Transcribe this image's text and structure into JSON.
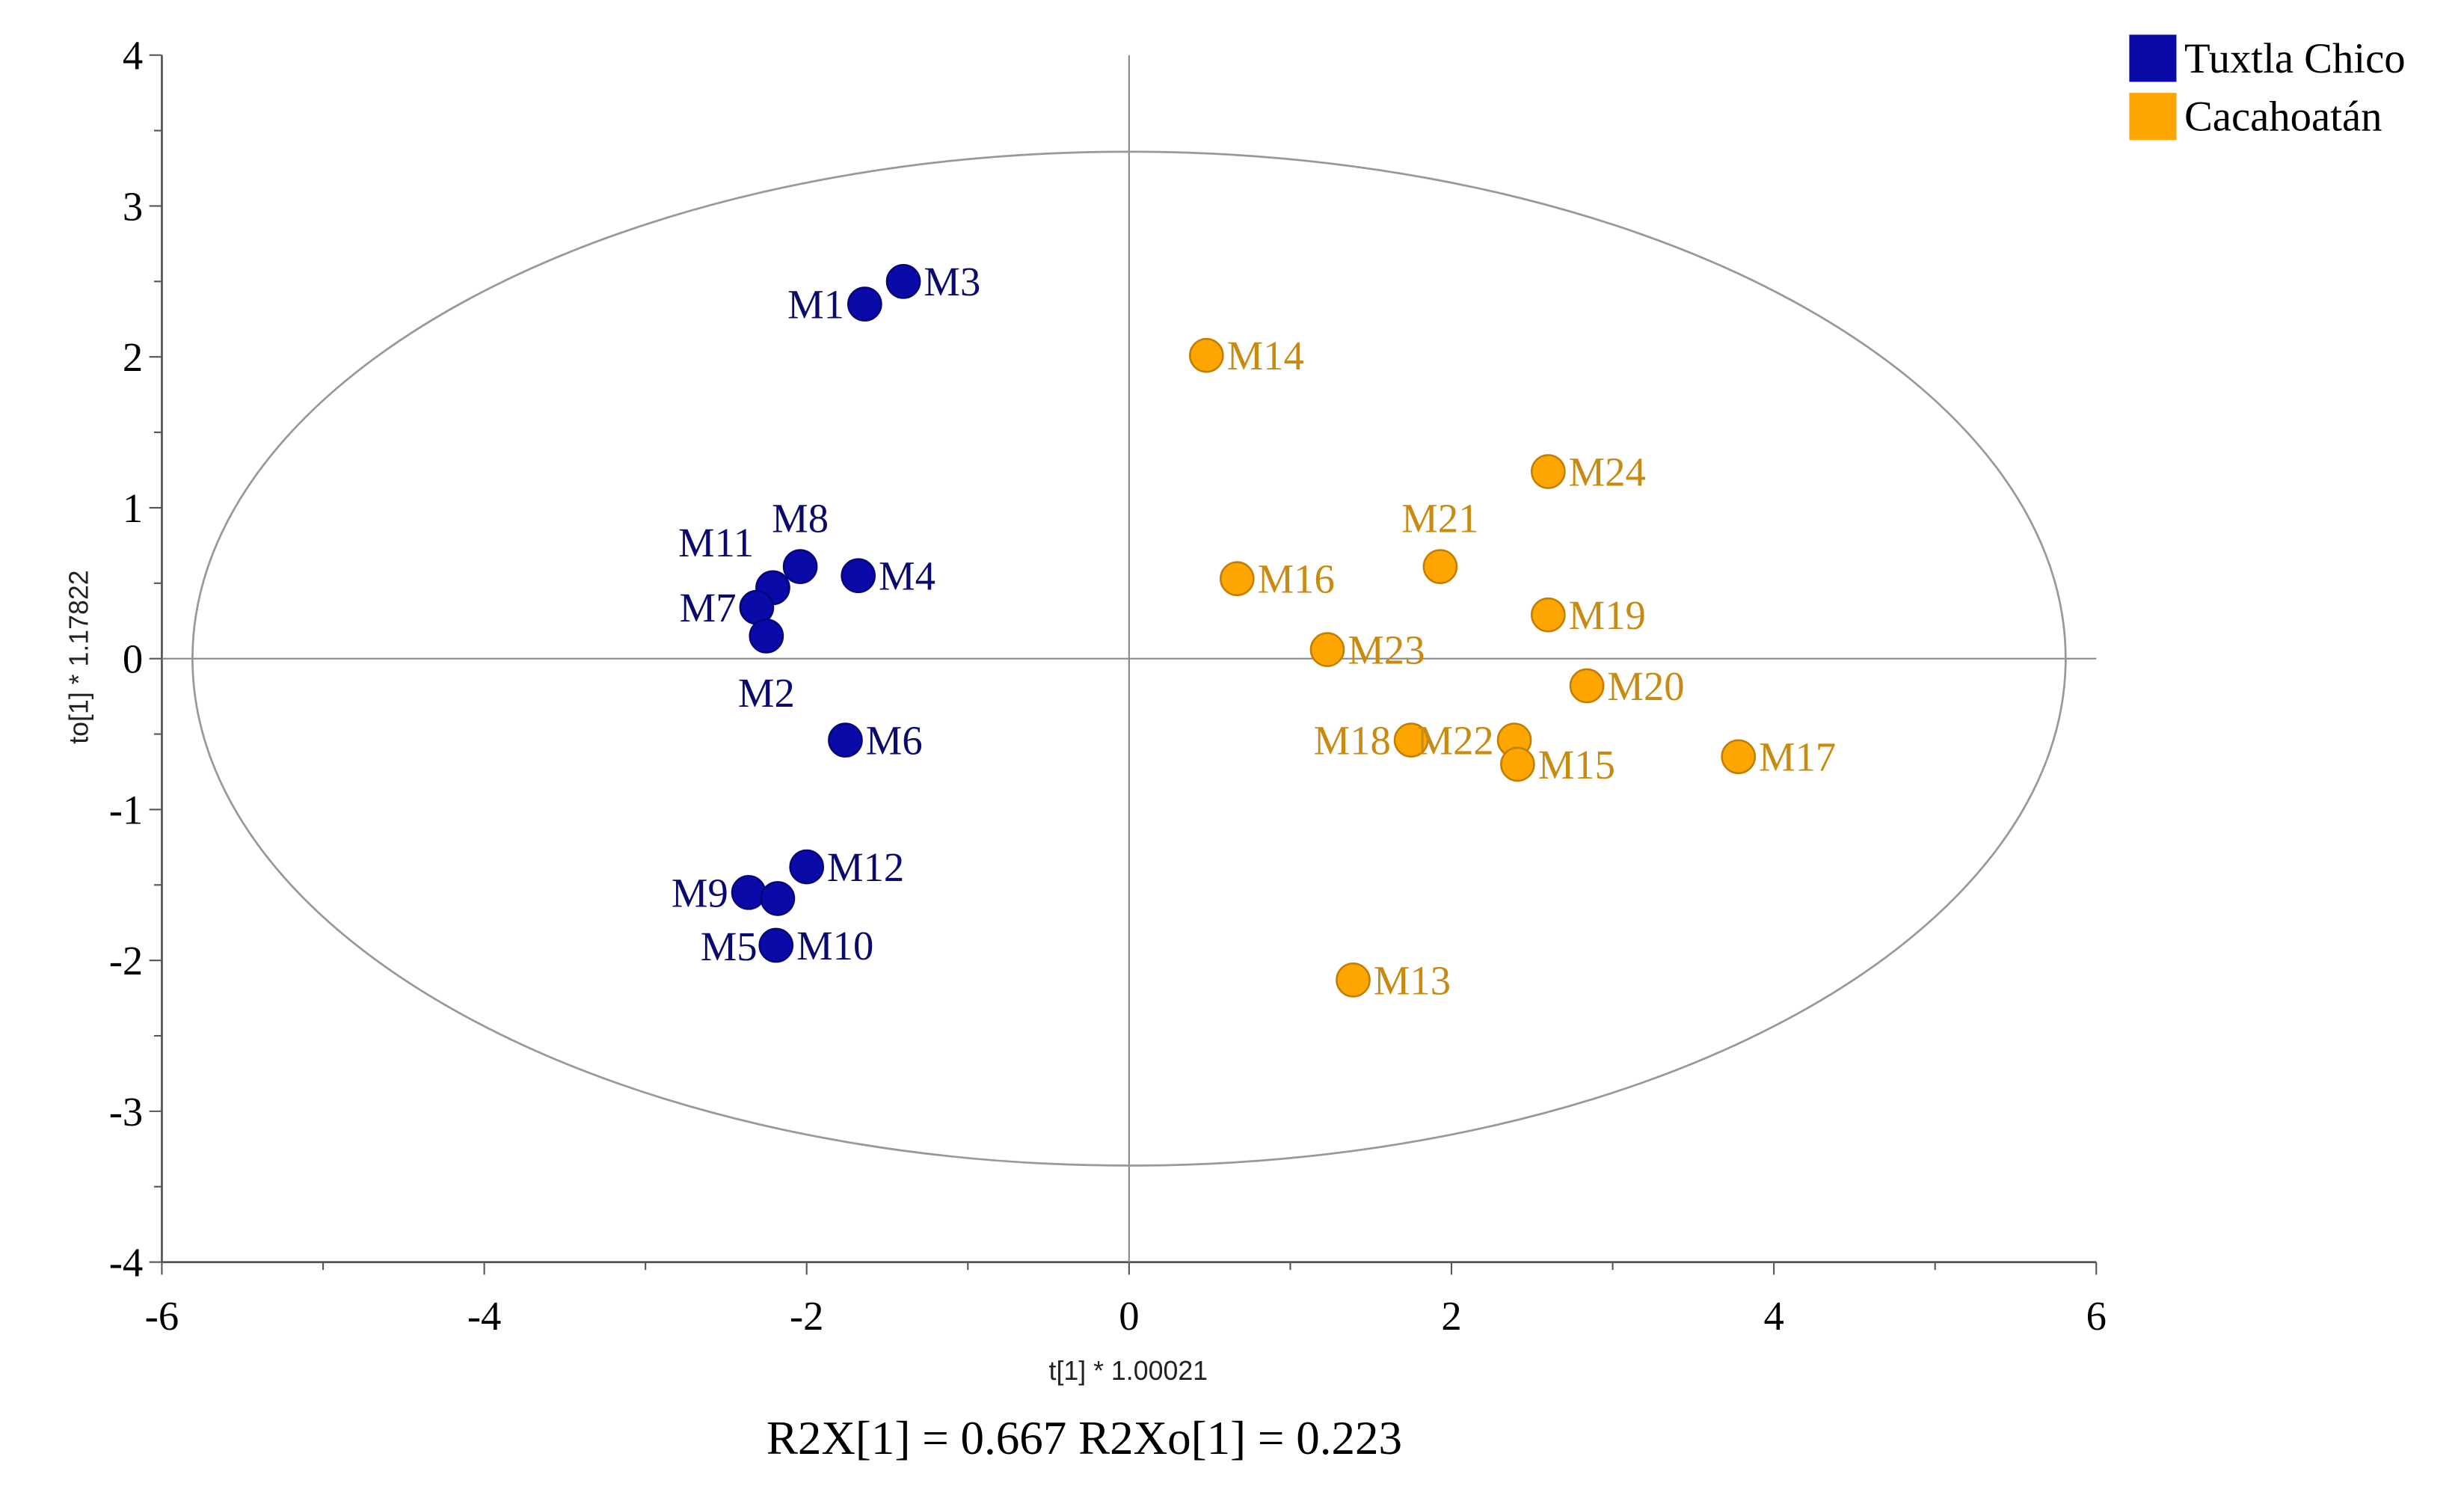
{
  "chart_data": {
    "type": "scatter",
    "title": "",
    "xlabel": "t[1] * 1.00021",
    "ylabel": "to[1] * 1.17822",
    "footer": "R2X[1] = 0.667 R2Xo[1] = 0.223",
    "xlim": [
      -6,
      6
    ],
    "ylim": [
      -4,
      4
    ],
    "xticks": [
      "-6",
      "-4",
      "-2",
      "0",
      "2",
      "4",
      "6"
    ],
    "yticks": [
      "4",
      "3",
      "2",
      "1",
      "0",
      "-1",
      "-2",
      "-3",
      "-4"
    ],
    "grid": false,
    "legend_position": "top-right",
    "ellipse": {
      "center": [
        0,
        0
      ],
      "radii": [
        5.81,
        3.36
      ],
      "color": "#999999"
    },
    "series": [
      {
        "name": "Tuxtla Chico",
        "color": "#0a0aa8",
        "label_color": "#0a0a6e",
        "points": [
          {
            "label": "M1",
            "x": -1.64,
            "y": 2.35,
            "label_pos": "left"
          },
          {
            "label": "M3",
            "x": -1.4,
            "y": 2.5,
            "label_pos": "right"
          },
          {
            "label": "M8",
            "x": -2.04,
            "y": 0.61,
            "label_pos": "above"
          },
          {
            "label": "M4",
            "x": -1.68,
            "y": 0.55,
            "label_pos": "right"
          },
          {
            "label": "M11",
            "x": -2.21,
            "y": 0.47,
            "label_pos": "above-left"
          },
          {
            "label": "M7",
            "x": -2.31,
            "y": 0.34,
            "label_pos": "left"
          },
          {
            "label": "M2",
            "x": -2.25,
            "y": 0.15,
            "label_pos": "below"
          },
          {
            "label": "M6",
            "x": -1.76,
            "y": -0.54,
            "label_pos": "right"
          },
          {
            "label": "M12",
            "x": -2.0,
            "y": -1.38,
            "label_pos": "right"
          },
          {
            "label": "M9",
            "x": -2.36,
            "y": -1.55,
            "label_pos": "left"
          },
          {
            "label": "M5",
            "x": -2.18,
            "y": -1.59,
            "label_pos": "left"
          },
          {
            "label": "M10",
            "x": -2.19,
            "y": -1.9,
            "label_pos": "right"
          }
        ]
      },
      {
        "name": "Cacahoatán",
        "color": "#ffa500",
        "label_color": "#c88a10",
        "points": [
          {
            "label": "M14",
            "x": 0.48,
            "y": 2.01,
            "label_pos": "right"
          },
          {
            "label": "M24",
            "x": 2.6,
            "y": 1.24,
            "label_pos": "right"
          },
          {
            "label": "M21",
            "x": 1.93,
            "y": 0.61,
            "label_pos": "above"
          },
          {
            "label": "M16",
            "x": 0.67,
            "y": 0.53,
            "label_pos": "right"
          },
          {
            "label": "M19",
            "x": 2.6,
            "y": 0.29,
            "label_pos": "right"
          },
          {
            "label": "M23",
            "x": 1.23,
            "y": 0.06,
            "label_pos": "right"
          },
          {
            "label": "M20",
            "x": 2.84,
            "y": -0.18,
            "label_pos": "right"
          },
          {
            "label": "M18",
            "x": 1.75,
            "y": -0.54,
            "label_pos": "left"
          },
          {
            "label": "M22",
            "x": 2.39,
            "y": -0.54,
            "label_pos": "left"
          },
          {
            "label": "M15",
            "x": 2.41,
            "y": -0.7,
            "label_pos": "right"
          },
          {
            "label": "M17",
            "x": 3.78,
            "y": -0.65,
            "label_pos": "right"
          },
          {
            "label": "M13",
            "x": 1.39,
            "y": -2.13,
            "label_pos": "right"
          }
        ]
      }
    ]
  }
}
